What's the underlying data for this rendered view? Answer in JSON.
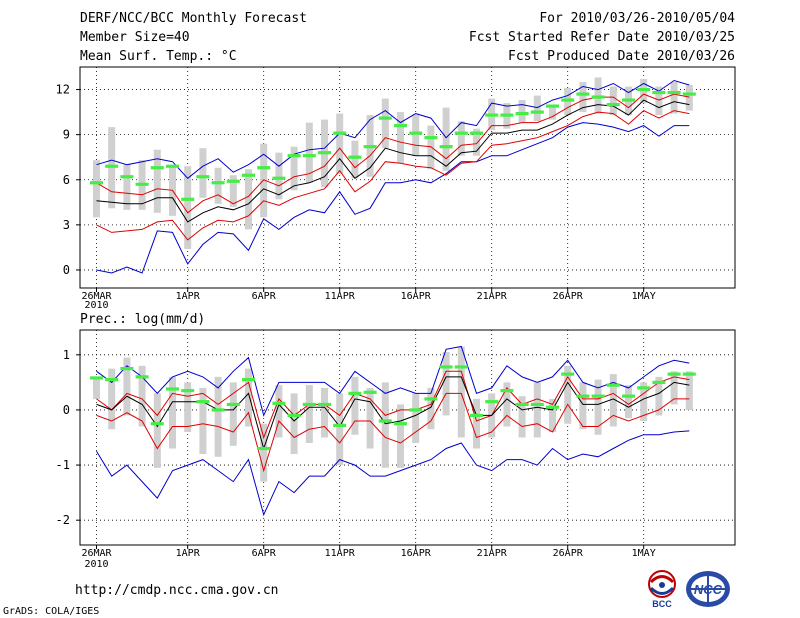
{
  "header": {
    "title": "DERF/NCC/BCC Monthly Forecast",
    "member_size": "Member Size=40",
    "variable_top": "Mean Surf. Temp.: °C",
    "period": "For 2010/03/26-2010/05/04",
    "started": "Fcst Started Refer Date 2010/03/25",
    "produced": "Fcst Produced Date 2010/03/26"
  },
  "footer": {
    "url": "http://cmdp.ncc.cma.gov.cn",
    "grads": "GrADS: COLA/IGES",
    "logo_bcc": "BCC",
    "logo_ncc": "NCC"
  },
  "colors": {
    "max_line": "#0000d0",
    "quartile_line": "#e00000",
    "mean_line": "#000000",
    "bar": "#d0d0d0",
    "median_marker": "#44ee44",
    "grid": "#000000"
  },
  "chart_data": [
    {
      "type": "line",
      "title": "Mean Surf. Temp.: °C",
      "x_tick_labels": [
        "26MAR",
        "1APR",
        "6APR",
        "11APR",
        "16APR",
        "21APR",
        "26APR",
        "1MAY"
      ],
      "x_tick_days": [
        0,
        6,
        11,
        16,
        21,
        26,
        31,
        36
      ],
      "year_label": "2010",
      "y_ticks": [
        0,
        3,
        6,
        9,
        12
      ],
      "ylim": [
        -1.2,
        13.5
      ],
      "grid": "dotted",
      "days": [
        0,
        1,
        2,
        3,
        4,
        5,
        6,
        7,
        8,
        9,
        10,
        11,
        12,
        13,
        14,
        15,
        16,
        17,
        18,
        19,
        20,
        21,
        22,
        23,
        24,
        25,
        26,
        27,
        28,
        29,
        30,
        31,
        32,
        33,
        34,
        35,
        36,
        37,
        38,
        39
      ],
      "series": [
        {
          "name": "max",
          "values": [
            7.0,
            7.3,
            7.0,
            7.2,
            7.4,
            7.2,
            6.1,
            6.9,
            7.4,
            6.5,
            7.0,
            7.7,
            6.9,
            7.7,
            8.0,
            8.1,
            9.1,
            8.8,
            10.0,
            10.6,
            9.8,
            10.4,
            10.1,
            8.8,
            9.8,
            9.6,
            11.1,
            10.9,
            11.0,
            10.8,
            11.3,
            11.6,
            12.2,
            12.0,
            12.4,
            11.8,
            12.4,
            11.9,
            12.6,
            12.3
          ]
        },
        {
          "name": "upper",
          "values": [
            5.8,
            5.2,
            5.1,
            5.0,
            5.4,
            5.3,
            3.8,
            4.6,
            5.0,
            4.4,
            4.9,
            6.0,
            5.6,
            6.2,
            6.4,
            6.9,
            8.1,
            6.8,
            7.6,
            8.8,
            8.5,
            8.3,
            8.2,
            7.4,
            8.3,
            8.4,
            9.6,
            9.6,
            9.8,
            9.8,
            10.2,
            10.8,
            11.3,
            11.5,
            11.5,
            10.8,
            11.7,
            11.3,
            11.7,
            11.5
          ]
        },
        {
          "name": "mean",
          "values": [
            4.6,
            4.5,
            4.4,
            4.4,
            4.8,
            4.8,
            3.2,
            3.8,
            4.2,
            4.0,
            4.4,
            5.4,
            5.0,
            5.6,
            5.8,
            6.2,
            7.4,
            6.1,
            6.8,
            8.1,
            7.8,
            7.6,
            7.6,
            6.9,
            7.8,
            7.9,
            9.1,
            9.1,
            9.3,
            9.3,
            9.7,
            10.3,
            10.8,
            11.0,
            10.9,
            10.3,
            11.3,
            10.8,
            11.2,
            11.0
          ]
        },
        {
          "name": "lower",
          "values": [
            3.0,
            2.5,
            2.6,
            2.7,
            3.2,
            3.3,
            2.0,
            2.8,
            3.3,
            3.2,
            3.6,
            4.6,
            4.3,
            4.8,
            5.1,
            5.4,
            6.6,
            5.2,
            5.9,
            7.2,
            7.1,
            6.9,
            6.8,
            6.3,
            7.1,
            7.2,
            8.3,
            8.4,
            8.6,
            8.8,
            9.2,
            9.6,
            10.2,
            10.5,
            10.4,
            9.7,
            10.6,
            10.1,
            10.6,
            10.4
          ]
        },
        {
          "name": "min",
          "values": [
            0.0,
            -0.2,
            0.2,
            -0.2,
            2.6,
            2.5,
            0.4,
            1.7,
            2.5,
            2.4,
            1.3,
            3.4,
            2.7,
            3.5,
            4.0,
            3.8,
            5.2,
            3.7,
            4.1,
            5.8,
            5.8,
            6.0,
            5.8,
            6.4,
            7.2,
            7.2,
            7.6,
            7.6,
            8.0,
            8.4,
            8.8,
            9.5,
            9.8,
            9.7,
            9.5,
            9.2,
            9.6,
            8.9,
            9.6,
            9.6
          ]
        },
        {
          "name": "median",
          "values": [
            5.8,
            6.9,
            6.2,
            5.7,
            6.8,
            6.9,
            4.7,
            6.2,
            5.8,
            5.9,
            6.3,
            6.8,
            6.1,
            7.6,
            7.6,
            7.8,
            9.1,
            7.5,
            8.2,
            10.1,
            9.6,
            9.1,
            8.8,
            8.2,
            9.1,
            9.1,
            10.3,
            10.3,
            10.4,
            10.5,
            10.9,
            11.3,
            11.7,
            11.5,
            11.0,
            11.3,
            12.0,
            11.8,
            11.8,
            11.7
          ]
        },
        {
          "name": "bar_top",
          "values": [
            7.3,
            9.5,
            7.0,
            7.3,
            8.0,
            7.0,
            6.9,
            8.1,
            6.8,
            6.3,
            6.7,
            8.4,
            7.8,
            8.2,
            9.8,
            10.0,
            10.4,
            8.6,
            10.3,
            11.4,
            10.5,
            10.3,
            9.6,
            10.8,
            9.9,
            9.4,
            11.4,
            11.1,
            11.3,
            11.6,
            11.0,
            12.1,
            12.5,
            12.8,
            12.2,
            12.2,
            12.7,
            12.2,
            12.5,
            12.3
          ]
        },
        {
          "name": "bar_bottom",
          "values": [
            3.5,
            4.1,
            4.0,
            4.0,
            3.8,
            3.6,
            1.4,
            4.8,
            4.4,
            4.2,
            2.7,
            3.5,
            4.7,
            5.3,
            5.8,
            5.5,
            6.4,
            6.1,
            6.2,
            8.1,
            7.1,
            7.6,
            6.7,
            6.6,
            7.6,
            7.6,
            9.3,
            9.4,
            9.8,
            9.9,
            10.0,
            10.3,
            10.5,
            10.4,
            10.3,
            10.3,
            11.1,
            10.3,
            10.4,
            10.6
          ]
        }
      ]
    },
    {
      "type": "line",
      "title": "Prec.: log(mm/d)",
      "x_tick_labels": [
        "26MAR",
        "1APR",
        "6APR",
        "11APR",
        "16APR",
        "21APR",
        "26APR",
        "1MAY"
      ],
      "x_tick_days": [
        0,
        6,
        11,
        16,
        21,
        26,
        31,
        36
      ],
      "year_label": "2010",
      "y_ticks": [
        -2,
        -1,
        0,
        1
      ],
      "ylim": [
        -2.45,
        1.45
      ],
      "grid": "dotted",
      "days": [
        0,
        1,
        2,
        3,
        4,
        5,
        6,
        7,
        8,
        9,
        10,
        11,
        12,
        13,
        14,
        15,
        16,
        17,
        18,
        19,
        20,
        21,
        22,
        23,
        24,
        25,
        26,
        27,
        28,
        29,
        30,
        31,
        32,
        33,
        34,
        35,
        36,
        37,
        38,
        39
      ],
      "series": [
        {
          "name": "max",
          "values": [
            0.7,
            0.5,
            0.8,
            0.6,
            0.3,
            0.6,
            0.7,
            0.6,
            0.4,
            0.7,
            0.95,
            -0.1,
            0.5,
            0.5,
            0.5,
            0.5,
            0.3,
            0.7,
            0.5,
            0.3,
            0.4,
            0.3,
            0.3,
            1.1,
            1.15,
            0.3,
            0.4,
            0.8,
            0.6,
            0.5,
            0.6,
            0.9,
            0.5,
            0.4,
            0.5,
            0.4,
            0.6,
            0.8,
            0.9,
            0.85
          ]
        },
        {
          "name": "upper",
          "values": [
            0.2,
            0.0,
            0.3,
            0.2,
            -0.1,
            0.3,
            0.25,
            0.3,
            0.1,
            0.3,
            0.5,
            -0.5,
            0.2,
            -0.1,
            0.1,
            0.1,
            -0.1,
            0.3,
            0.2,
            -0.1,
            0.0,
            0.0,
            0.1,
            0.7,
            0.7,
            -0.2,
            -0.1,
            0.4,
            0.1,
            0.2,
            0.1,
            0.6,
            0.2,
            0.2,
            0.3,
            0.1,
            0.3,
            0.5,
            0.6,
            0.55
          ]
        },
        {
          "name": "mean",
          "values": [
            0.1,
            0.0,
            0.25,
            0.1,
            -0.3,
            0.15,
            0.15,
            0.15,
            0.0,
            0.0,
            0.3,
            -0.7,
            0.1,
            -0.2,
            0.05,
            0.05,
            -0.3,
            0.2,
            0.15,
            -0.25,
            -0.2,
            -0.1,
            0.05,
            0.6,
            0.6,
            -0.1,
            -0.1,
            0.2,
            0.0,
            0.05,
            0.0,
            0.5,
            0.1,
            0.1,
            0.2,
            0.05,
            0.2,
            0.3,
            0.5,
            0.45
          ]
        },
        {
          "name": "lower",
          "values": [
            -0.1,
            -0.2,
            -0.05,
            -0.2,
            -0.7,
            -0.3,
            -0.3,
            -0.25,
            -0.3,
            -0.4,
            -0.05,
            -1.1,
            -0.2,
            -0.5,
            -0.35,
            -0.3,
            -0.6,
            -0.2,
            -0.2,
            -0.5,
            -0.6,
            -0.4,
            -0.2,
            0.3,
            0.3,
            -0.5,
            -0.4,
            -0.1,
            -0.3,
            -0.25,
            -0.4,
            0.1,
            -0.3,
            -0.3,
            -0.1,
            -0.2,
            -0.1,
            0.0,
            0.2,
            0.2
          ]
        },
        {
          "name": "min",
          "values": [
            -0.75,
            -1.2,
            -1.0,
            -1.3,
            -1.6,
            -1.1,
            -1.0,
            -0.9,
            -1.1,
            -1.3,
            -0.9,
            -1.9,
            -1.3,
            -1.5,
            -1.2,
            -1.2,
            -0.9,
            -1.0,
            -1.2,
            -1.2,
            -1.1,
            -1.0,
            -0.9,
            -0.7,
            -0.6,
            -1.0,
            -1.1,
            -0.9,
            -0.9,
            -1.0,
            -0.7,
            -0.9,
            -0.8,
            -0.85,
            -0.7,
            -0.55,
            -0.45,
            -0.45,
            -0.4,
            -0.38
          ]
        },
        {
          "name": "median",
          "values": [
            0.58,
            0.55,
            0.75,
            0.6,
            -0.25,
            0.38,
            0.35,
            0.15,
            0.0,
            0.1,
            0.55,
            -0.7,
            0.12,
            -0.1,
            0.1,
            0.1,
            -0.28,
            0.3,
            0.32,
            -0.2,
            -0.25,
            0.0,
            0.2,
            0.78,
            0.78,
            -0.1,
            0.15,
            0.35,
            0.1,
            0.1,
            0.05,
            0.65,
            0.25,
            0.25,
            0.45,
            0.25,
            0.4,
            0.5,
            0.65,
            0.65
          ]
        },
        {
          "name": "bar_top",
          "values": [
            0.6,
            0.75,
            0.95,
            0.8,
            0.3,
            0.6,
            0.5,
            0.4,
            0.6,
            0.5,
            0.75,
            -0.25,
            0.45,
            0.3,
            0.45,
            0.4,
            0.3,
            0.6,
            0.4,
            0.5,
            0.1,
            0.3,
            0.4,
            1.05,
            1.15,
            0.2,
            0.3,
            0.5,
            0.25,
            0.5,
            0.2,
            0.8,
            0.5,
            0.55,
            0.65,
            0.45,
            0.5,
            0.6,
            0.7,
            0.7
          ]
        },
        {
          "name": "bar_bottom",
          "values": [
            0.2,
            -0.35,
            -0.1,
            -0.3,
            -1.05,
            -0.7,
            -0.4,
            -0.8,
            -0.85,
            -0.65,
            -0.3,
            -1.3,
            -0.5,
            -0.8,
            -0.6,
            -0.5,
            -1.0,
            -0.45,
            -0.7,
            -1.05,
            -1.05,
            -0.6,
            -0.35,
            -0.1,
            -0.5,
            -0.7,
            -0.5,
            -0.3,
            -0.5,
            -0.5,
            -0.4,
            -0.25,
            -0.35,
            -0.45,
            -0.3,
            -0.15,
            -0.2,
            -0.1,
            0.1,
            0.0
          ]
        }
      ]
    }
  ]
}
